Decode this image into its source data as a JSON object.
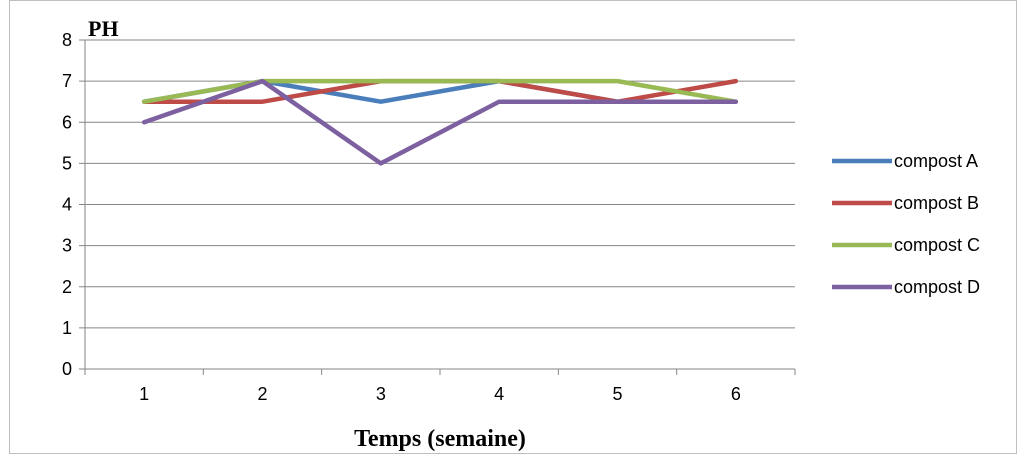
{
  "chart_data": {
    "type": "line",
    "title": "",
    "xlabel": "Temps (semaine)",
    "ylabel": "PH",
    "categories": [
      "1",
      "2",
      "3",
      "4",
      "5",
      "6"
    ],
    "ylim": [
      0,
      8
    ],
    "yticks": [
      0,
      1,
      2,
      3,
      4,
      5,
      6,
      7,
      8
    ],
    "grid": true,
    "legend_position": "right",
    "series": [
      {
        "name": "compost A",
        "color": "#4a7ebb",
        "values": [
          6.5,
          7,
          6.5,
          7,
          6.5,
          6.5
        ]
      },
      {
        "name": "compost B",
        "color": "#be4b48",
        "values": [
          6.5,
          6.5,
          7,
          7,
          6.5,
          7
        ]
      },
      {
        "name": "compost C",
        "color": "#98b954",
        "values": [
          6.5,
          7,
          7,
          7,
          7,
          6.5
        ]
      },
      {
        "name": "compost D",
        "color": "#7d60a0",
        "values": [
          6,
          7,
          5,
          6.5,
          6.5,
          6.5
        ]
      }
    ]
  }
}
